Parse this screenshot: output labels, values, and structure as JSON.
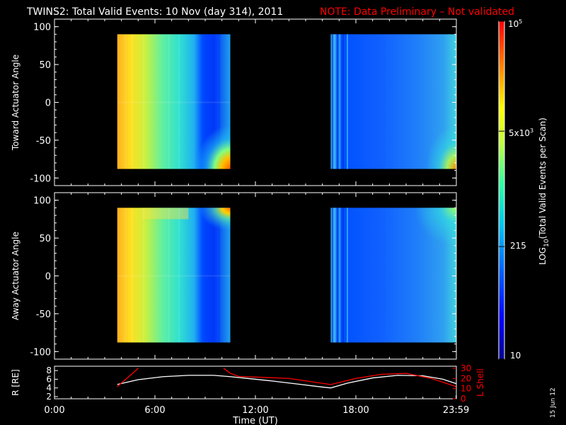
{
  "header": {
    "title": "TWINS2: Total Valid Events: 10 Nov (day 314), 2011",
    "note": "NOTE: Data Preliminary – Not validated",
    "note_color": "#ff0000"
  },
  "side_date": "15 Jun 12",
  "colorbar": {
    "label": "LOG10(Total Valid Events per Scan)",
    "tick_labels": [
      "10",
      "215",
      "5x10^3",
      "10^5"
    ],
    "tick_values": [
      10,
      215,
      5000,
      100000
    ],
    "scale": "log",
    "colormap": [
      "#000080",
      "#0000ff",
      "#0080ff",
      "#00e0e0",
      "#40ff80",
      "#c0ff40",
      "#ffff00",
      "#ff8000",
      "#ff0000"
    ]
  },
  "chart_data": [
    {
      "type": "heatmap",
      "ylabel": "Toward Actuator Angle",
      "yticks": [
        100,
        50,
        0,
        -50,
        -100
      ],
      "ylim": [
        -110,
        110
      ],
      "xlim": [
        0,
        24
      ],
      "data_extent_y": [
        -88,
        90
      ],
      "segments": [
        {
          "t_start": 3.75,
          "t_end": 10.5
        },
        {
          "t_start": 16.5,
          "t_end": 23.983
        }
      ],
      "description_levels": "high (yellow-orange) near start of first segment, low (blue) around 9-10 UT; second segment mostly low (blue), rising toward -90 deg near 23-24 UT"
    },
    {
      "type": "heatmap",
      "ylabel": "Away Actuator Angle",
      "yticks": [
        100,
        50,
        0,
        -50,
        -100
      ],
      "ylim": [
        -110,
        110
      ],
      "xlim": [
        0,
        24
      ],
      "data_extent_y": [
        -88,
        90
      ],
      "segments": [
        {
          "t_start": 3.75,
          "t_end": 10.5
        },
        {
          "t_start": 16.5,
          "t_end": 23.983
        }
      ]
    },
    {
      "type": "line",
      "ylabel_left": "R [RE]",
      "ylabel_right": "L Shell",
      "yticks_left": [
        8,
        6,
        4,
        2
      ],
      "yticks_right": [
        30,
        20,
        10,
        0
      ],
      "xticks": [
        "0:00",
        "6:00",
        "12:00",
        "18:00",
        "23:59"
      ],
      "xlabel": "Time (UT)",
      "series": [
        {
          "color": "#ffffff",
          "x": [
            3.75,
            5.0,
            6.5,
            8.0,
            9.5,
            10.5,
            11.5,
            13.0,
            14.5,
            16.0,
            16.5,
            17.5,
            19.0,
            20.5,
            22.0,
            23.2,
            23.98
          ],
          "y": [
            4.8,
            5.9,
            6.6,
            6.9,
            6.9,
            6.6,
            6.2,
            5.6,
            4.9,
            4.2,
            4.0,
            5.1,
            6.3,
            6.9,
            6.8,
            6.0,
            5.0
          ]
        },
        {
          "color": "#ff0000",
          "x": [
            3.75,
            4.6,
            5.0,
            10.1,
            10.5,
            11.0,
            12.5,
            14.0,
            16.5,
            18.0,
            19.5,
            21.0,
            22.5,
            23.98
          ],
          "y": [
            12,
            24,
            30,
            30,
            25,
            22,
            21,
            20,
            14,
            20,
            24,
            25,
            20,
            12
          ]
        }
      ]
    }
  ]
}
